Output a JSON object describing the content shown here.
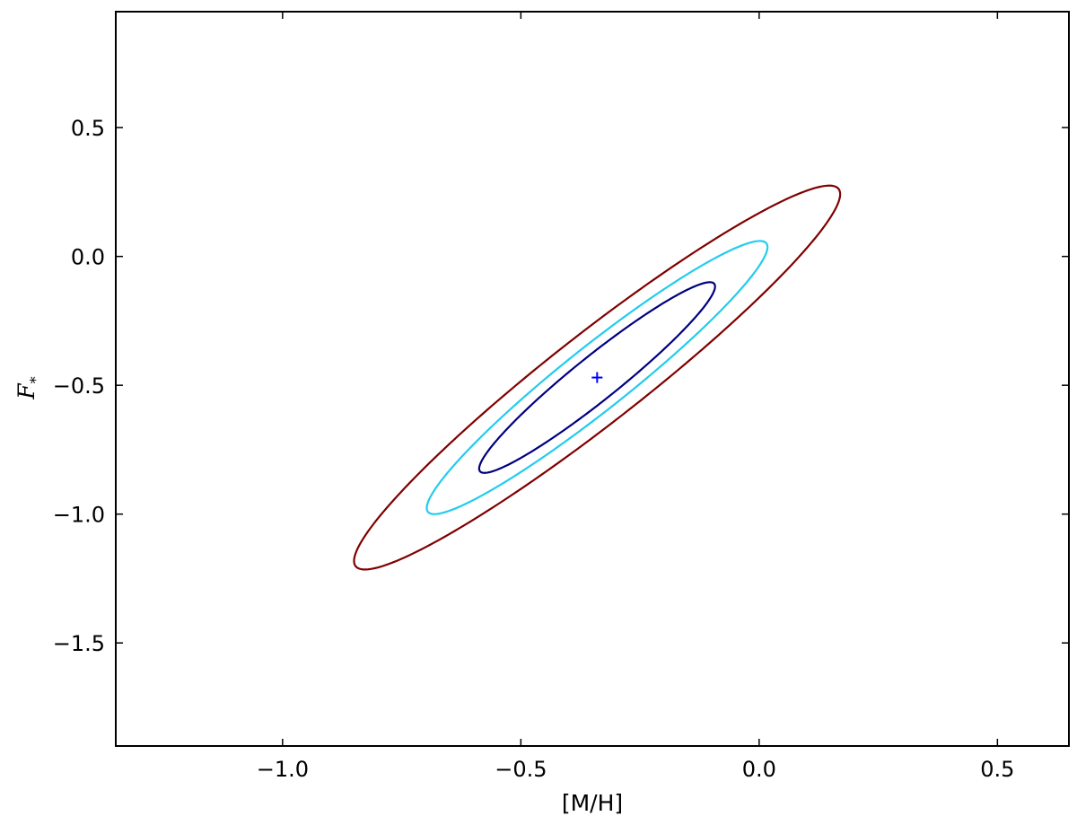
{
  "chart_data": {
    "type": "line",
    "title": "",
    "xlabel": "[M/H]",
    "ylabel": "F",
    "ylabel_subscript": "*",
    "xlim": [
      -1.35,
      0.65
    ],
    "ylim": [
      -1.9,
      0.95
    ],
    "xticks": [
      -1.0,
      -0.5,
      0.0,
      0.5
    ],
    "xtick_labels": [
      "−1.0",
      "−0.5",
      "0.0",
      "0.5"
    ],
    "yticks": [
      0.5,
      0.0,
      -0.5,
      -1.0,
      -1.5
    ],
    "ytick_labels": [
      "0.5",
      "0.0",
      "−0.5",
      "−1.0",
      "−1.5"
    ],
    "grid": false,
    "best_fit": {
      "x": -0.34,
      "y": -0.47,
      "marker": "+",
      "color": "#0000ff"
    },
    "series": [
      {
        "kind": "contour",
        "color": "#000080",
        "center": [
          -0.34,
          -0.47
        ],
        "x_extent": [
          -0.59,
          -0.095
        ],
        "y_extent": [
          -0.84,
          -0.1
        ]
      },
      {
        "kind": "contour",
        "color": "#22ccee",
        "center": [
          -0.34,
          -0.47
        ],
        "x_extent": [
          -0.7,
          0.015
        ],
        "y_extent": [
          -1.0,
          0.06
        ]
      },
      {
        "kind": "contour",
        "color": "#800000",
        "center": [
          -0.34,
          -0.47
        ],
        "x_extent": [
          -0.85,
          0.17
        ],
        "y_extent": [
          -1.22,
          0.27
        ]
      }
    ]
  }
}
